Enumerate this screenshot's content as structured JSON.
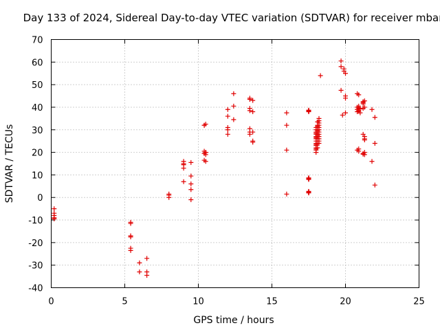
{
  "chart_data": {
    "type": "scatter",
    "title": "Day 133 of 2024, Sidereal Day-to-day VTEC variation (SDTVAR) for receiver mbar",
    "xlabel": "GPS time / hours",
    "ylabel": "SDTVAR / TECUs",
    "xlim": [
      0,
      25
    ],
    "ylim": [
      -40,
      70
    ],
    "xticks": [
      0,
      5,
      10,
      15,
      20,
      25
    ],
    "yticks": [
      -40,
      -30,
      -20,
      -10,
      0,
      10,
      20,
      30,
      40,
      50,
      60,
      70
    ],
    "grid": true,
    "marker": "+",
    "color": "#e00000",
    "series": [
      {
        "name": "SDTVAR",
        "x": [
          0.2,
          0.2,
          0.2,
          0.2,
          0.2,
          5.4,
          5.4,
          5.4,
          5.4,
          5.4,
          5.4,
          6.0,
          6.0,
          6.5,
          6.5,
          6.5,
          8.0,
          8.0,
          8.0,
          9.0,
          9.0,
          9.0,
          9.0,
          9.0,
          9.5,
          9.5,
          9.5,
          9.5,
          9.5,
          10.4,
          10.5,
          10.4,
          10.5,
          10.4,
          10.5,
          10.4,
          10.5,
          10.4,
          10.5,
          12.0,
          12.0,
          12.0,
          12.0,
          12.0,
          12.4,
          12.4,
          12.4,
          13.5,
          13.5,
          13.5,
          13.5,
          13.5,
          13.5,
          13.5,
          13.7,
          13.7,
          13.7,
          13.7,
          13.7,
          16.0,
          16.0,
          16.0,
          16.0,
          17.5,
          17.5,
          17.5,
          17.5,
          17.5,
          17.5,
          17.5,
          17.5,
          17.5,
          17.5,
          17.5,
          17.5,
          17.5,
          17.5,
          17.5,
          17.5,
          17.5,
          17.5,
          17.5,
          17.5,
          17.5,
          17.5,
          17.5,
          17.5,
          17.5,
          17.5,
          17.5,
          18.0,
          18.0,
          18.0,
          18.0,
          18.0,
          18.0,
          18.0,
          18.0,
          18.0,
          18.0,
          18.0,
          18.0,
          18.0,
          18.0,
          18.0,
          18.0,
          18.2,
          18.2,
          18.2,
          18.2,
          18.2,
          18.2,
          18.2,
          18.2,
          18.2,
          18.2,
          18.2,
          18.2,
          18.1,
          18.1,
          18.1,
          18.1,
          18.1,
          18.1,
          18.1,
          18.1,
          18.1,
          18.1,
          18.3,
          19.7,
          19.7,
          19.7,
          19.8,
          19.9,
          19.9,
          20.0,
          20.0,
          20.0,
          20.0,
          20.8,
          20.9,
          20.8,
          20.9,
          20.8,
          20.9,
          20.8,
          20.9,
          21.0,
          20.9,
          21.0,
          20.9,
          20.8,
          20.9,
          20.9,
          21.2,
          21.2,
          21.2,
          21.3,
          21.3,
          21.3,
          21.2,
          21.3,
          21.2,
          21.3,
          21.2,
          21.3,
          21.2,
          21.3,
          21.8,
          21.8,
          22.0,
          22.0,
          22.0
        ],
        "y": [
          -5,
          -7,
          -8,
          -9,
          -9.5,
          -11,
          -11.5,
          -17,
          -17.5,
          -22.5,
          -23.5,
          -29,
          -33,
          -27,
          -33,
          -34.5,
          0,
          1,
          1.5,
          16,
          14.5,
          13,
          7,
          15,
          15.5,
          9.5,
          6,
          3.5,
          -1,
          32,
          32.5,
          20.5,
          20,
          19.5,
          19,
          16.5,
          16,
          32,
          20,
          39,
          36,
          31,
          30,
          28,
          46,
          40.5,
          34.5,
          44,
          43.5,
          39.5,
          38.5,
          30.5,
          29,
          28,
          43,
          38,
          29,
          25,
          24.5,
          37.5,
          32,
          21,
          1.5,
          38.5,
          38,
          8.5,
          8,
          2.5,
          2,
          38.2,
          8.2,
          2.2,
          8.7,
          2.7,
          38.3,
          8.3,
          2.3,
          38.4,
          8.4,
          2.4,
          38.5,
          8.5,
          2.5,
          38.6,
          8.6,
          2.6,
          38.1,
          8.1,
          2.1,
          38.7,
          20,
          21,
          22,
          23,
          24,
          25,
          26,
          27,
          28,
          29,
          30,
          31,
          21.5,
          23.5,
          26.5,
          28.5,
          24,
          25,
          26,
          27,
          28,
          29,
          30,
          31,
          32,
          33,
          34,
          35,
          22,
          24,
          26,
          28,
          30,
          32,
          27.5,
          29.5,
          31.5,
          33.5,
          54,
          60.5,
          58,
          47.5,
          36.5,
          56,
          57,
          55,
          45,
          44,
          37.5,
          46,
          45.5,
          40,
          39.5,
          39,
          38.5,
          38,
          40.5,
          39.2,
          38.2,
          37.5,
          21.5,
          21,
          20.5,
          39.8,
          42.5,
          42,
          28,
          27,
          26,
          25.5,
          19.5,
          19,
          41.5,
          40,
          39.5,
          20,
          19.2,
          42.8,
          39,
          16,
          35.5,
          24,
          5.5
        ]
      }
    ]
  }
}
